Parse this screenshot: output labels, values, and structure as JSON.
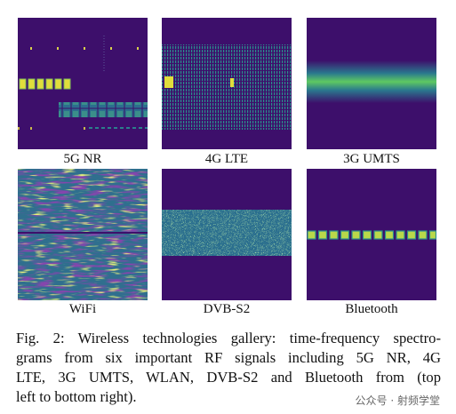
{
  "figure": {
    "panels": [
      {
        "label": "5G NR"
      },
      {
        "label": "4G LTE"
      },
      {
        "label": "3G UMTS"
      },
      {
        "label": "WiFi"
      },
      {
        "label": "DVB-S2"
      },
      {
        "label": "Bluetooth"
      }
    ],
    "caption": {
      "lines": [
        "Fig. 2: Wireless technologies gallery: time-frequency spectro-",
        "grams from six important RF signals including 5G NR, 4G",
        "LTE, 3G UMTS, WLAN, DVB-S2 and Bluetooth from (top",
        "left to bottom right)."
      ]
    }
  },
  "watermark": "公众号 · 射频学堂"
}
